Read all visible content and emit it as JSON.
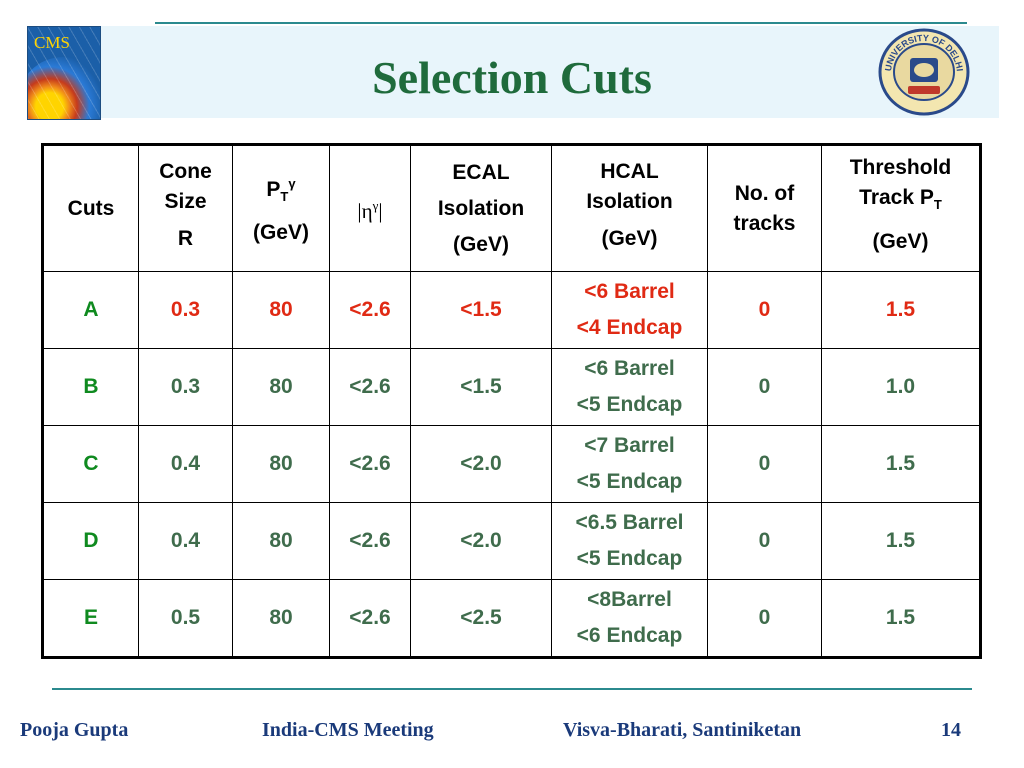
{
  "slide": {
    "title": "Selection Cuts",
    "cms_logo_text": "CMS",
    "du_logo_text": "UNIVERSITY OF DELHI"
  },
  "table": {
    "headers": [
      {
        "lines": [
          "Cuts"
        ]
      },
      {
        "lines": [
          "Cone",
          "Size",
          "R"
        ]
      },
      {
        "main": "P",
        "sub": "T",
        "sup": "γ",
        "unit": "(GeV)"
      },
      {
        "main": "|η",
        "sup": "γ",
        "tail": "|"
      },
      {
        "lines": [
          "ECAL",
          "Isolation",
          "(GeV)"
        ]
      },
      {
        "lines": [
          "HCAL",
          "Isolation",
          "(GeV)"
        ]
      },
      {
        "lines": [
          "No. of",
          "tracks"
        ]
      },
      {
        "line1": "Threshold",
        "line2_main": "Track P",
        "line2_sub": "T",
        "line3": "(GeV)"
      }
    ],
    "rows": [
      {
        "cut": "A",
        "cone": "0.3",
        "pt": "80",
        "eta": "<2.6",
        "ecal": "<1.5",
        "hcal_barrel": "<6 Barrel",
        "hcal_endcap": "<4 Endcap",
        "tracks": "0",
        "threshold": "1.5",
        "highlight": true
      },
      {
        "cut": "B",
        "cone": "0.3",
        "pt": "80",
        "eta": "<2.6",
        "ecal": "<1.5",
        "hcal_barrel": "<6 Barrel",
        "hcal_endcap": "<5 Endcap",
        "tracks": "0",
        "threshold": "1.0",
        "highlight": false
      },
      {
        "cut": "C",
        "cone": "0.4",
        "pt": "80",
        "eta": "<2.6",
        "ecal": "<2.0",
        "hcal_barrel": "<7 Barrel",
        "hcal_endcap": "<5 Endcap",
        "tracks": "0",
        "threshold": "1.5",
        "highlight": false
      },
      {
        "cut": "D",
        "cone": "0.4",
        "pt": "80",
        "eta": "<2.6",
        "ecal": "<2.0",
        "hcal_barrel": "<6.5 Barrel",
        "hcal_endcap": "<5 Endcap",
        "tracks": "0",
        "threshold": "1.5",
        "highlight": false
      },
      {
        "cut": "E",
        "cone": "0.5",
        "pt": "80",
        "eta": "<2.6",
        "ecal": "<2.5",
        "hcal_barrel": "<8Barrel",
        "hcal_endcap": "<6 Endcap",
        "tracks": "0",
        "threshold": "1.5",
        "highlight": false
      }
    ]
  },
  "footer": {
    "author": "Pooja Gupta",
    "event": "India-CMS Meeting",
    "venue": "Visva-Bharati, Santiniketan",
    "page": "14"
  },
  "colors": {
    "title": "#1f6b3c",
    "highlight_value": "#e02a14",
    "normal_value": "#3f6c4c",
    "cut_label": "#0f8a1f",
    "footer_text": "#1a3a7a",
    "rule": "#2b8a8e"
  }
}
